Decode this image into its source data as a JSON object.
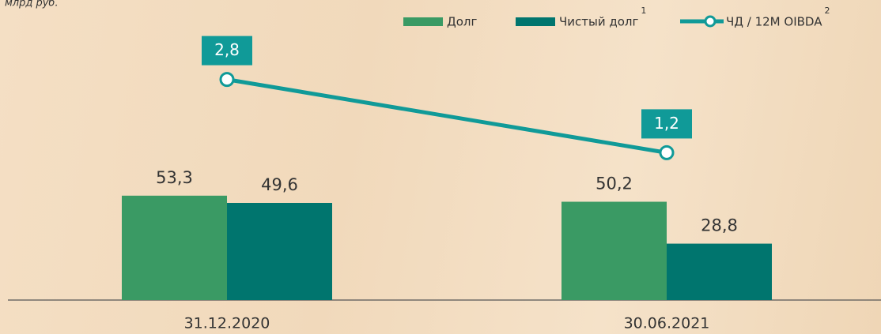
{
  "chart_data": {
    "type": "bar",
    "subtitle": "млрд руб.",
    "categories": [
      "31.12.2020",
      "30.06.2021"
    ],
    "series": [
      {
        "name": "Долг",
        "color": "#3a9a64",
        "values": [
          53.3,
          50.2
        ],
        "value_labels": [
          "53,3",
          "50,2"
        ]
      },
      {
        "name": "Чистый долг",
        "footnote": "1",
        "color": "#00756e",
        "values": [
          49.6,
          28.8
        ],
        "value_labels": [
          "49,6",
          "28,8"
        ]
      },
      {
        "name": "ЧД / 12M OIBDA",
        "footnote": "2",
        "type": "line",
        "axis": "y2",
        "color": "#109a98",
        "values": [
          2.8,
          1.2
        ],
        "value_labels": [
          "2,8",
          "1,2"
        ]
      }
    ],
    "ylim": [
      0,
      150
    ],
    "y2lim": [
      0,
      4
    ],
    "grid": false
  }
}
